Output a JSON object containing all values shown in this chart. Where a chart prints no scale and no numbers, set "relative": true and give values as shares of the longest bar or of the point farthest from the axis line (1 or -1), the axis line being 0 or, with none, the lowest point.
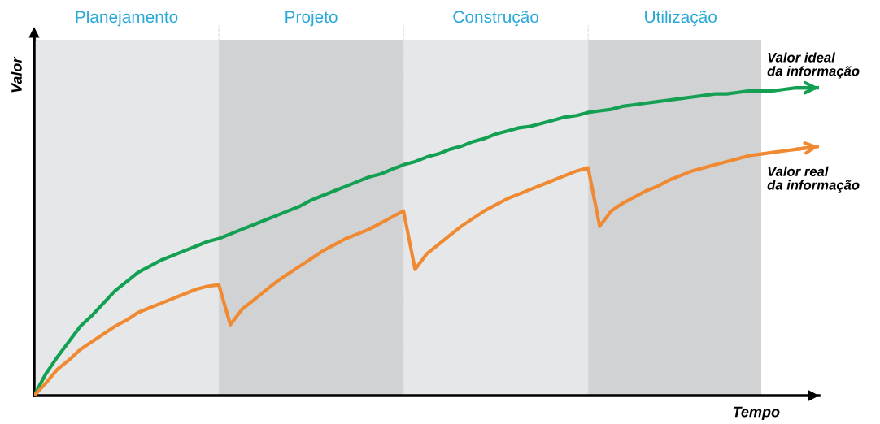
{
  "chart_data": {
    "type": "line",
    "relative": true,
    "xlabel": "Tempo",
    "ylabel": "Valor",
    "tick_labels": "x",
    "legend": false,
    "marker": "none",
    "line_style": "solid",
    "categories": [
      null,
      null,
      null,
      null,
      null,
      null,
      null,
      null,
      "Planejamento",
      null,
      null,
      null,
      null,
      null,
      null,
      null,
      null,
      null,
      null,
      null,
      null,
      null,
      null,
      null,
      "Projeto",
      null,
      null,
      null,
      null,
      null,
      null,
      null,
      null,
      null,
      null,
      null,
      null,
      null,
      null,
      null,
      "Construção",
      null,
      null,
      null,
      null,
      null,
      null,
      null,
      null,
      null,
      null,
      null,
      null,
      null,
      null,
      null,
      "Utilização",
      null,
      null,
      null,
      null,
      null,
      null,
      null,
      null,
      null,
      null,
      null,
      null
    ],
    "series": [
      {
        "name": "Valor ideal\nda informação",
        "color": "#14a052",
        "values": [
          0,
          0.07,
          0.125,
          0.175,
          0.225,
          0.26,
          0.3,
          0.34,
          0.37,
          0.4,
          0.42,
          0.44,
          0.455,
          0.47,
          0.485,
          0.5,
          0.51,
          0.525,
          0.54,
          0.555,
          0.57,
          0.585,
          0.6,
          0.615,
          0.635,
          0.65,
          0.665,
          0.68,
          0.695,
          0.71,
          0.72,
          0.735,
          0.75,
          0.76,
          0.775,
          0.785,
          0.8,
          0.81,
          0.825,
          0.835,
          0.85,
          0.86,
          0.87,
          0.875,
          0.885,
          0.895,
          0.905,
          0.91,
          0.92,
          0.925,
          0.93,
          0.94,
          0.945,
          0.95,
          0.955,
          0.96,
          0.965,
          0.97,
          0.975,
          0.98,
          0.98,
          0.985,
          0.99,
          0.99,
          0.99,
          0.995,
          1.0,
          1.0,
          1.0
        ]
      },
      {
        "name": "Valor real\nda informação",
        "color": "#f08a32",
        "values": [
          0,
          0.04,
          0.085,
          0.115,
          0.15,
          0.175,
          0.2,
          0.225,
          0.245,
          0.27,
          0.285,
          0.3,
          0.315,
          0.33,
          0.345,
          0.355,
          0.36,
          0.23,
          0.28,
          0.31,
          0.34,
          0.37,
          0.395,
          0.42,
          0.445,
          0.47,
          0.49,
          0.51,
          0.525,
          0.54,
          0.56,
          0.58,
          0.6,
          0.41,
          0.46,
          0.49,
          0.52,
          0.55,
          0.575,
          0.6,
          0.62,
          0.64,
          0.655,
          0.67,
          0.685,
          0.7,
          0.715,
          0.73,
          0.74,
          0.55,
          0.6,
          0.625,
          0.645,
          0.665,
          0.68,
          0.7,
          0.715,
          0.73,
          0.74,
          0.75,
          0.76,
          0.77,
          0.78,
          0.785,
          0.79,
          0.795,
          0.8,
          0.805,
          0.81
        ]
      }
    ]
  }
}
